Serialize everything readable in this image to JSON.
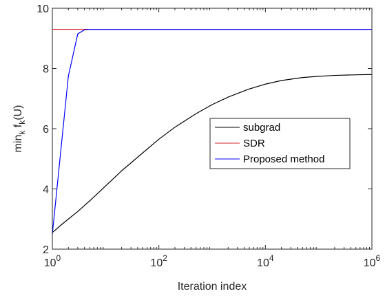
{
  "chart_data": {
    "type": "line",
    "xscale": "log",
    "xlim": [
      1,
      1000000
    ],
    "ylim": [
      2,
      10
    ],
    "xlabel": "Iteration index",
    "ylabel": {
      "prefix": "min",
      "sub1": "k",
      "mid": " f",
      "sub2": "k",
      "suffix": "(U)"
    },
    "xticks": [
      {
        "value": 1,
        "base": "10",
        "exp": "0"
      },
      {
        "value": 100,
        "base": "10",
        "exp": "2"
      },
      {
        "value": 10000,
        "base": "10",
        "exp": "4"
      },
      {
        "value": 1000000,
        "base": "10",
        "exp": "6"
      }
    ],
    "yticks": [
      {
        "value": 2,
        "label": "2"
      },
      {
        "value": 4,
        "label": "4"
      },
      {
        "value": 6,
        "label": "6"
      },
      {
        "value": 8,
        "label": "8"
      },
      {
        "value": 10,
        "label": "10"
      }
    ],
    "grid": false,
    "legend_position": "center-right",
    "series": [
      {
        "name": "subgrad",
        "color": "#000000",
        "x": [
          1,
          1.5,
          2,
          3,
          5,
          10,
          20,
          50,
          100,
          200,
          500,
          1000,
          2000,
          5000,
          10000,
          20000,
          50000,
          100000,
          200000,
          500000,
          1000000
        ],
        "y": [
          2.55,
          2.82,
          3.0,
          3.25,
          3.6,
          4.1,
          4.6,
          5.2,
          5.65,
          6.05,
          6.5,
          6.8,
          7.05,
          7.32,
          7.48,
          7.6,
          7.7,
          7.74,
          7.77,
          7.79,
          7.8
        ]
      },
      {
        "name": "SDR",
        "color": "#d62728",
        "x": [
          1,
          1000000
        ],
        "y": [
          9.3,
          9.3
        ]
      },
      {
        "name": "Proposed method",
        "color": "#0000ff",
        "x": [
          1,
          2,
          3,
          4,
          5,
          1000000
        ],
        "y": [
          2.5,
          7.75,
          9.15,
          9.28,
          9.3,
          9.3
        ]
      }
    ]
  }
}
